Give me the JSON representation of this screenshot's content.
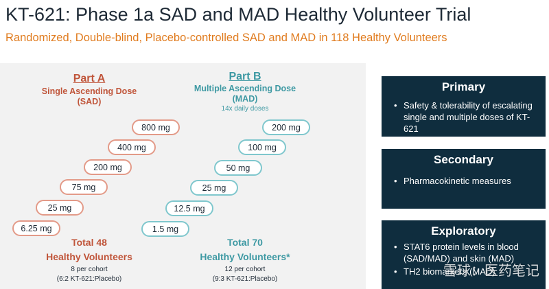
{
  "header": {
    "title": "KT-621: Phase 1a SAD and MAD Healthy Volunteer Trial",
    "subtitle": "Randomized, Double-blind, Placebo-controlled SAD and MAD in 118 Healthy Volunteers"
  },
  "part_a": {
    "title": "Part A",
    "subtitle_line1": "Single Ascending Dose",
    "subtitle_line2": "(SAD)",
    "doses": [
      "800 mg",
      "400 mg",
      "200 mg",
      "75 mg",
      "25 mg",
      "6.25 mg"
    ],
    "total_line1": "Total 48",
    "total_line2": "Healthy Volunteers",
    "cohort_line1": "8 per cohort",
    "cohort_line2": "(6:2 KT-621:Placebo)"
  },
  "part_b": {
    "title": "Part B",
    "subtitle_line1": "Multiple Ascending Dose",
    "subtitle_line2": "(MAD)",
    "note": "14x daily doses",
    "doses": [
      "200 mg",
      "100 mg",
      "50 mg",
      "25 mg",
      "12.5 mg",
      "1.5 mg"
    ],
    "total_line1": "Total 70",
    "total_line2": "Healthy Volunteers*",
    "cohort_line1": "12 per cohort",
    "cohort_line2": "(9:3 KT-621:Placebo)"
  },
  "endpoints": {
    "primary": {
      "title": "Primary",
      "items": [
        "Safety & tolerability of escalating single and multiple doses of KT-621"
      ]
    },
    "secondary": {
      "title": "Secondary",
      "items": [
        "Pharmacokinetic measures"
      ]
    },
    "exploratory": {
      "title": "Exploratory",
      "items": [
        "STAT6 protein levels in blood (SAD/MAD) and skin (MAD)",
        "TH2 biomarkers (MAD)"
      ]
    }
  },
  "watermark": "雪球：医药笔记"
}
